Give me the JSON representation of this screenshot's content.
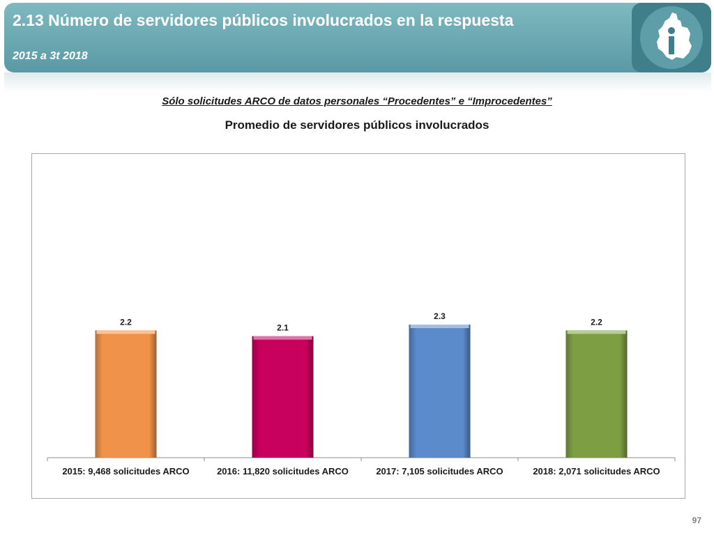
{
  "header": {
    "title": "2.13 Número de servidores públicos involucrados en la respuesta",
    "subtitle": "2015 a 3t 2018"
  },
  "note": "Sólo solicitudes ARCO de datos personales “Procedentes” e “Improcedentes”",
  "page_number": "97",
  "chart_data": {
    "type": "bar",
    "title": "Promedio de servidores públicos involucrados",
    "categories": [
      "2015: 9,468 solicitudes ARCO",
      "2016: 11,820 solicitudes ARCO",
      "2017: 7,105 solicitudes ARCO",
      "2018: 2,071 solicitudes ARCO"
    ],
    "values": [
      2.2,
      2.1,
      2.3,
      2.2
    ],
    "value_labels": [
      "2.2",
      "2.1",
      "2.3",
      "2.2"
    ],
    "colors": [
      "#f0924a",
      "#c8005e",
      "#5b8bca",
      "#7e9e44"
    ],
    "ylim": [
      0,
      2.4
    ],
    "xlabel": "",
    "ylabel": "",
    "grid": false,
    "legend": "none"
  }
}
